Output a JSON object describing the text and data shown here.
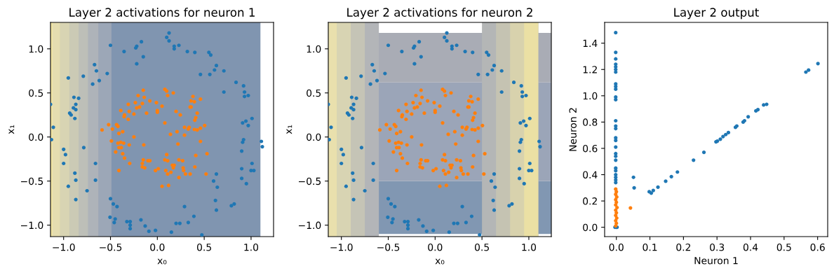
{
  "chart_data": [
    {
      "type": "scatter",
      "title": "Layer 2 activations for neuron 1",
      "xlabel": "x₀",
      "ylabel": "x₁",
      "xlim": [
        -1.14,
        1.24
      ],
      "ylim": [
        -1.13,
        1.3
      ],
      "xticks": [
        {
          "value": -1.0,
          "label": "−1.0"
        },
        {
          "value": -0.5,
          "label": "−0.5"
        },
        {
          "value": 0,
          "label": "0.0"
        },
        {
          "value": 0.5,
          "label": "0.5"
        },
        {
          "value": 1,
          "label": "1.0"
        }
      ],
      "yticks": [
        {
          "value": -1.0,
          "label": "−1.0"
        },
        {
          "value": -0.5,
          "label": "−0.5"
        },
        {
          "value": 0,
          "label": "0.0"
        },
        {
          "value": 0.5,
          "label": "0.5"
        },
        {
          "value": 1,
          "label": "1.0"
        }
      ],
      "marker": "circle",
      "bands": [
        {
          "axis": "x",
          "from": -1.14,
          "to": 1.1,
          "color": "#8095b0"
        },
        {
          "axis": "x",
          "from": -1.14,
          "to": -0.49,
          "color": "#9ca7b7"
        },
        {
          "axis": "x",
          "from": -1.14,
          "to": -0.63,
          "color": "#aeb3b9"
        },
        {
          "axis": "x",
          "from": -1.14,
          "to": -0.74,
          "color": "#bdbfb8"
        },
        {
          "axis": "x",
          "from": -1.14,
          "to": -0.84,
          "color": "#cbcab5"
        },
        {
          "axis": "x",
          "from": -1.14,
          "to": -0.94,
          "color": "#d8d4b3"
        },
        {
          "axis": "x",
          "from": -1.14,
          "to": -1.04,
          "color": "#e5ddb0"
        },
        {
          "axis": "x",
          "from": -1.14,
          "to": -1.12,
          "color": "#f3e6a2"
        }
      ],
      "series": [
        {
          "color": "#1f77b4",
          "x": [
            0.125,
            0.1,
            0.125,
            -0.5,
            -0.17,
            -0.22,
            -0.23,
            -0.355,
            -0.15,
            -0.22,
            0.18,
            0.18,
            0.23,
            0.32,
            0.4,
            0.55,
            0.57,
            0.63,
            0.61,
            0.71,
            0.46,
            0.56,
            0.71,
            0.84,
            0.92,
            0.93,
            0.93,
            0.97,
            0.91,
            0.945,
            1.01,
            0.97,
            0.92,
            0.91,
            0.9,
            1.11,
            1.12,
            1.01,
            0.9,
            1.0,
            1.03,
            0.9,
            0.95,
            0.63,
            0.6,
            0.64,
            0.62,
            0.63,
            0.79,
            0.82,
            0.29,
            0.39,
            0.33,
            0.2,
            0.24,
            0.15,
            0.475,
            -0.02,
            -0.09,
            -0.13,
            -0.175,
            -0.325,
            -0.29,
            -0.29,
            -0.29,
            -0.505,
            -0.45,
            -0.46,
            -0.5,
            -0.47,
            -0.43,
            -0.75,
            -0.87,
            -0.88,
            -0.95,
            -0.87,
            -0.66,
            -0.66,
            -1.0,
            -0.98,
            -1.0,
            -0.785,
            -1.13,
            -1.11,
            -1.14,
            -0.935,
            -0.92,
            -0.88,
            -0.895,
            -0.87,
            -0.87,
            -0.89,
            -0.84,
            -0.95,
            -0.79,
            -0.69,
            -0.67,
            -0.65,
            -0.62,
            -0.535
          ],
          "values": [
            1.18,
            1.13,
            1.09,
            1.04,
            1.08,
            1.03,
            1.01,
            0.97,
            0.91,
            0.83,
            1.03,
            1.0,
            1.04,
            0.97,
            0.96,
            0.96,
            0.93,
            0.81,
            0.76,
            0.75,
            0.71,
            0.71,
            0.51,
            0.62,
            0.58,
            0.51,
            0.46,
            0.47,
            0.16,
            0.18,
            0.21,
            0.13,
            -0.03,
            -0.06,
            -0.16,
            -0.05,
            -0.11,
            -0.3,
            -0.36,
            -0.38,
            -0.38,
            -0.47,
            -0.53,
            -0.42,
            -0.5,
            -0.57,
            -0.72,
            -0.83,
            -0.78,
            -0.76,
            -0.79,
            -0.9,
            -0.97,
            -0.98,
            -0.98,
            -1.08,
            -1.11,
            -1.06,
            -1.07,
            -1.01,
            -0.94,
            -0.96,
            -0.96,
            -1.0,
            -1.04,
            -0.91,
            -0.93,
            -0.97,
            -0.7,
            -0.76,
            -0.79,
            -0.61,
            -0.49,
            -0.41,
            -0.56,
            -0.71,
            -0.49,
            -0.3,
            -0.14,
            -0.2,
            -0.3,
            -0.12,
            -0.03,
            0.11,
            0.37,
            0.27,
            0.25,
            0.21,
            0.33,
            0.31,
            0.37,
            0.45,
            0.44,
            0.67,
            0.69,
            0.6,
            0.82,
            0.75,
            0.64,
            0.72
          ]
        },
        {
          "color": "#ff7f0e",
          "x": [
            -0.15,
            0.08,
            0.1,
            0.11,
            0.17,
            -0.205,
            -0.14,
            -0.31,
            -0.235,
            -0.16,
            -0.08,
            -0.01,
            0.05,
            -0.22,
            -0.19,
            -0.39,
            -0.35,
            -0.355,
            -0.3,
            -0.25,
            -0.31,
            -0.115,
            0.0,
            0.0,
            0.2,
            0.245,
            0.38,
            0.36,
            0.395,
            0.46,
            0.35,
            0.36,
            0.425,
            0.41,
            0.4,
            0.08,
            -0.52,
            -0.435,
            -0.42,
            -0.48,
            -0.59,
            -0.41,
            -0.37,
            -0.25,
            -0.49,
            -0.42,
            -0.39,
            -0.36,
            -0.385,
            -0.41,
            -0.3,
            -0.145,
            -0.445,
            -0.37,
            -0.35,
            -0.295,
            -0.41,
            -0.15,
            -0.16,
            -0.16,
            -0.135,
            -0.1,
            -0.08,
            -0.02,
            0.01,
            0.08,
            0.1,
            0.11,
            0.09,
            0.11,
            0.145,
            0.16,
            0.18,
            0.17,
            0.23,
            0.27,
            0.275,
            0.28,
            0.3,
            0.35,
            0.23,
            0.05,
            0.12,
            0.4,
            0.41,
            0.52,
            0.53,
            0.46,
            0.14,
            0.22,
            0.21,
            0.29,
            0.29,
            0.33,
            0.395,
            0.425,
            0.46,
            0.505,
            0.34
          ],
          "values": [
            0.53,
            0.54,
            0.52,
            0.47,
            0.5,
            0.47,
            0.45,
            0.37,
            0.39,
            0.38,
            0.41,
            0.39,
            0.35,
            0.33,
            0.34,
            0.3,
            0.25,
            0.23,
            0.29,
            0.26,
            0.2,
            0.27,
            0.3,
            0.28,
            0.29,
            0.25,
            0.46,
            0.41,
            0.4,
            0.43,
            0.34,
            0.34,
            0.27,
            0.22,
            0.19,
            0.16,
            0.14,
            0.14,
            0.12,
            0.09,
            0.08,
            0.04,
            0.06,
            0.0,
            -0.045,
            -0.07,
            -0.06,
            -0.07,
            -0.12,
            -0.12,
            -0.09,
            -0.09,
            -0.17,
            -0.19,
            -0.24,
            -0.3,
            -0.38,
            -0.26,
            -0.3,
            -0.34,
            -0.35,
            -0.27,
            -0.27,
            -0.38,
            -0.36,
            -0.26,
            -0.2,
            -0.27,
            -0.38,
            -0.42,
            -0.4,
            -0.32,
            -0.32,
            -0.35,
            -0.26,
            -0.27,
            -0.35,
            -0.38,
            -0.42,
            -0.42,
            -0.46,
            -0.56,
            -0.55,
            -0.34,
            -0.21,
            -0.42,
            -0.19,
            -0.05,
            0.03,
            -0.08,
            0.06,
            0.02,
            0.11,
            0.09,
            0.085,
            0.08,
            0.1,
            0.13,
            0.11
          ]
        }
      ]
    },
    {
      "type": "scatter",
      "title": "Layer 2 activations for neuron 2",
      "xlabel": "x₀",
      "ylabel": "x₁",
      "xlim": [
        -1.14,
        1.24
      ],
      "ylim": [
        -1.13,
        1.3
      ],
      "xticks": [
        {
          "value": -1.0,
          "label": "−1.0"
        },
        {
          "value": -0.5,
          "label": "−0.5"
        },
        {
          "value": 0,
          "label": "0.0"
        },
        {
          "value": 0.5,
          "label": "0.5"
        },
        {
          "value": 1,
          "label": "1.0"
        }
      ],
      "yticks": [
        {
          "value": -1.0,
          "label": "−1.0"
        },
        {
          "value": -0.5,
          "label": "−0.5"
        },
        {
          "value": 0,
          "label": "0.0"
        },
        {
          "value": 0.5,
          "label": "0.5"
        },
        {
          "value": 1,
          "label": "1.0"
        }
      ],
      "marker": "circle",
      "bands": [
        {
          "axis": "y",
          "from": -1.1,
          "to": -0.5,
          "color": "#8197b2"
        },
        {
          "axis": "y",
          "from": -0.5,
          "to": 0.62,
          "color": "#9ba5b8"
        },
        {
          "axis": "y",
          "from": 0.62,
          "to": 1.18,
          "color": "#a9acb5"
        },
        {
          "axis": "x",
          "from": -1.14,
          "to": -0.6,
          "color": "#b3b5b8"
        },
        {
          "axis": "x",
          "from": -1.14,
          "to": -0.75,
          "color": "#c5c4b6"
        },
        {
          "axis": "x",
          "from": -1.14,
          "to": -0.9,
          "color": "#d8d4b3"
        },
        {
          "axis": "x",
          "from": -1.14,
          "to": -1.05,
          "color": "#e9e0ad"
        },
        {
          "axis": "x",
          "from": 0.5,
          "to": 1.1,
          "color": "#b4b6b6"
        },
        {
          "axis": "x",
          "from": 0.65,
          "to": 1.1,
          "color": "#c5c3b2"
        },
        {
          "axis": "x",
          "from": 0.8,
          "to": 1.1,
          "color": "#d8d2ad"
        },
        {
          "axis": "x",
          "from": 0.95,
          "to": 1.1,
          "color": "#ebe0a4"
        }
      ],
      "series": [
        {
          "color": "#1f77b4",
          "x": [
            0.125,
            0.1,
            0.125,
            -0.5,
            -0.17,
            -0.22,
            -0.23,
            -0.355,
            -0.15,
            -0.22,
            0.18,
            0.18,
            0.23,
            0.32,
            0.4,
            0.55,
            0.57,
            0.63,
            0.61,
            0.71,
            0.46,
            0.56,
            0.71,
            0.84,
            0.92,
            0.93,
            0.93,
            0.97,
            0.91,
            0.945,
            1.01,
            0.97,
            0.92,
            0.91,
            0.9,
            1.11,
            1.12,
            1.01,
            0.9,
            1.0,
            1.03,
            0.9,
            0.95,
            0.63,
            0.6,
            0.64,
            0.62,
            0.63,
            0.79,
            0.82,
            0.29,
            0.39,
            0.33,
            0.2,
            0.24,
            0.15,
            0.475,
            -0.02,
            -0.09,
            -0.13,
            -0.175,
            -0.325,
            -0.29,
            -0.29,
            -0.29,
            -0.505,
            -0.45,
            -0.46,
            -0.5,
            -0.47,
            -0.43,
            -0.75,
            -0.87,
            -0.88,
            -0.95,
            -0.87,
            -0.66,
            -0.66,
            -1.0,
            -0.98,
            -1.0,
            -0.785,
            -1.13,
            -1.11,
            -1.14,
            -0.935,
            -0.92,
            -0.88,
            -0.895,
            -0.87,
            -0.87,
            -0.89,
            -0.84,
            -0.95,
            -0.79,
            -0.69,
            -0.67,
            -0.65,
            -0.62,
            -0.535
          ],
          "values": [
            1.18,
            1.13,
            1.09,
            1.04,
            1.08,
            1.03,
            1.01,
            0.97,
            0.91,
            0.83,
            1.03,
            1.0,
            1.04,
            0.97,
            0.96,
            0.96,
            0.93,
            0.81,
            0.76,
            0.75,
            0.71,
            0.71,
            0.51,
            0.62,
            0.58,
            0.51,
            0.46,
            0.47,
            0.16,
            0.18,
            0.21,
            0.13,
            -0.03,
            -0.06,
            -0.16,
            -0.05,
            -0.11,
            -0.3,
            -0.36,
            -0.38,
            -0.38,
            -0.47,
            -0.53,
            -0.42,
            -0.5,
            -0.57,
            -0.72,
            -0.83,
            -0.78,
            -0.76,
            -0.79,
            -0.9,
            -0.97,
            -0.98,
            -0.98,
            -1.08,
            -1.11,
            -1.06,
            -1.07,
            -1.01,
            -0.94,
            -0.96,
            -0.96,
            -1.0,
            -1.04,
            -0.91,
            -0.93,
            -0.97,
            -0.7,
            -0.76,
            -0.79,
            -0.61,
            -0.49,
            -0.41,
            -0.56,
            -0.71,
            -0.49,
            -0.3,
            -0.14,
            -0.2,
            -0.3,
            -0.12,
            -0.03,
            0.11,
            0.37,
            0.27,
            0.25,
            0.21,
            0.33,
            0.31,
            0.37,
            0.45,
            0.44,
            0.67,
            0.69,
            0.6,
            0.82,
            0.75,
            0.64,
            0.72
          ]
        },
        {
          "color": "#ff7f0e",
          "x": [
            -0.15,
            0.08,
            0.1,
            0.11,
            0.17,
            -0.205,
            -0.14,
            -0.31,
            -0.235,
            -0.16,
            -0.08,
            -0.01,
            0.05,
            -0.22,
            -0.19,
            -0.39,
            -0.35,
            -0.355,
            -0.3,
            -0.25,
            -0.31,
            -0.115,
            0.0,
            0.0,
            0.2,
            0.245,
            0.38,
            0.36,
            0.395,
            0.46,
            0.35,
            0.36,
            0.425,
            0.41,
            0.4,
            0.08,
            -0.52,
            -0.435,
            -0.42,
            -0.48,
            -0.59,
            -0.41,
            -0.37,
            -0.25,
            -0.49,
            -0.42,
            -0.39,
            -0.36,
            -0.385,
            -0.41,
            -0.3,
            -0.145,
            -0.445,
            -0.37,
            -0.35,
            -0.295,
            -0.41,
            -0.15,
            -0.16,
            -0.16,
            -0.135,
            -0.1,
            -0.08,
            -0.02,
            0.01,
            0.08,
            0.1,
            0.11,
            0.09,
            0.11,
            0.145,
            0.16,
            0.18,
            0.17,
            0.23,
            0.27,
            0.275,
            0.28,
            0.3,
            0.35,
            0.23,
            0.05,
            0.12,
            0.4,
            0.41,
            0.52,
            0.53,
            0.46,
            0.14,
            0.22,
            0.21,
            0.29,
            0.29,
            0.33,
            0.395,
            0.425,
            0.46,
            0.505,
            0.34
          ],
          "values": [
            0.53,
            0.54,
            0.52,
            0.47,
            0.5,
            0.47,
            0.45,
            0.37,
            0.39,
            0.38,
            0.41,
            0.39,
            0.35,
            0.33,
            0.34,
            0.3,
            0.25,
            0.23,
            0.29,
            0.26,
            0.2,
            0.27,
            0.3,
            0.28,
            0.29,
            0.25,
            0.46,
            0.41,
            0.4,
            0.43,
            0.34,
            0.34,
            0.27,
            0.22,
            0.19,
            0.16,
            0.14,
            0.14,
            0.12,
            0.09,
            0.08,
            0.04,
            0.06,
            0.0,
            -0.045,
            -0.07,
            -0.06,
            -0.07,
            -0.12,
            -0.12,
            -0.09,
            -0.09,
            -0.17,
            -0.19,
            -0.24,
            -0.3,
            -0.38,
            -0.26,
            -0.3,
            -0.34,
            -0.35,
            -0.27,
            -0.27,
            -0.38,
            -0.36,
            -0.26,
            -0.2,
            -0.27,
            -0.38,
            -0.42,
            -0.4,
            -0.32,
            -0.32,
            -0.35,
            -0.26,
            -0.27,
            -0.35,
            -0.38,
            -0.42,
            -0.42,
            -0.46,
            -0.56,
            -0.55,
            -0.34,
            -0.21,
            -0.42,
            -0.19,
            -0.05,
            0.03,
            -0.08,
            0.06,
            0.02,
            0.11,
            0.09,
            0.085,
            0.08,
            0.1,
            0.13,
            0.11
          ]
        }
      ]
    },
    {
      "type": "scatter",
      "title": "Layer 2 output",
      "xlabel": "Neuron 1",
      "ylabel": "Neuron 2",
      "xlim": [
        -0.035,
        0.63
      ],
      "ylim": [
        -0.071,
        1.558
      ],
      "xticks": [
        {
          "value": 0,
          "label": "0.0"
        },
        0.1,
        0.2,
        0.3,
        0.4,
        0.5,
        0.6
      ],
      "yticks": [
        {
          "value": 0,
          "label": "0.0"
        },
        0.2,
        0.4,
        0.6,
        0.8,
        {
          "value": 1,
          "label": "1.0"
        },
        1.2,
        1.4
      ],
      "marker": "circle",
      "series": [
        {
          "color": "#1f77b4",
          "x": [
            -0.002,
            -0.002,
            -0.002,
            -0.002,
            -0.002,
            -0.002,
            -0.002,
            -0.002,
            -0.002,
            -0.002,
            -0.002,
            -0.002,
            -0.002,
            -0.002,
            -0.002,
            -0.002,
            -0.002,
            -0.002,
            -0.002,
            -0.002,
            -0.002,
            -0.002,
            -0.002,
            -0.002,
            -0.002,
            -0.002,
            -0.002,
            -0.004,
            0.0,
            0.002,
            0.051,
            0.053,
            0.098,
            0.104,
            0.11,
            0.124,
            0.147,
            0.164,
            0.182,
            0.23,
            0.261,
            0.297,
            0.301,
            0.31,
            0.318,
            0.326,
            0.334,
            0.355,
            0.359,
            0.378,
            0.382,
            0.393,
            0.416,
            0.422,
            0.439,
            0.448,
            0.565,
            0.573,
            0.601
          ],
          "values": [
            1.48,
            1.33,
            1.28,
            1.24,
            1.22,
            1.2,
            1.18,
            1.09,
            1.07,
            1.05,
            0.99,
            0.97,
            0.81,
            0.77,
            0.75,
            0.68,
            0.66,
            0.61,
            0.56,
            0.54,
            0.51,
            0.45,
            0.43,
            0.4,
            0.38,
            0.36,
            0.34,
            0.0,
            0.0,
            0.0,
            0.38,
            0.3,
            0.27,
            0.26,
            0.28,
            0.305,
            0.35,
            0.385,
            0.42,
            0.51,
            0.57,
            0.65,
            0.655,
            0.67,
            0.69,
            0.705,
            0.72,
            0.76,
            0.77,
            0.8,
            0.81,
            0.84,
            0.885,
            0.895,
            0.93,
            0.935,
            1.18,
            1.195,
            1.245
          ]
        },
        {
          "color": "#ff7f0e",
          "x": [
            -0.002,
            0.0,
            -0.002,
            0.001,
            -0.002,
            0.0,
            -0.002,
            0.002,
            -0.002,
            0.0,
            -0.002,
            0.001,
            -0.002,
            0.0,
            -0.002,
            0.042
          ],
          "values": [
            0.29,
            0.27,
            0.25,
            0.23,
            0.21,
            0.19,
            0.17,
            0.15,
            0.13,
            0.11,
            0.09,
            0.07,
            0.05,
            0.03,
            0.01,
            0.147
          ]
        }
      ]
    }
  ]
}
